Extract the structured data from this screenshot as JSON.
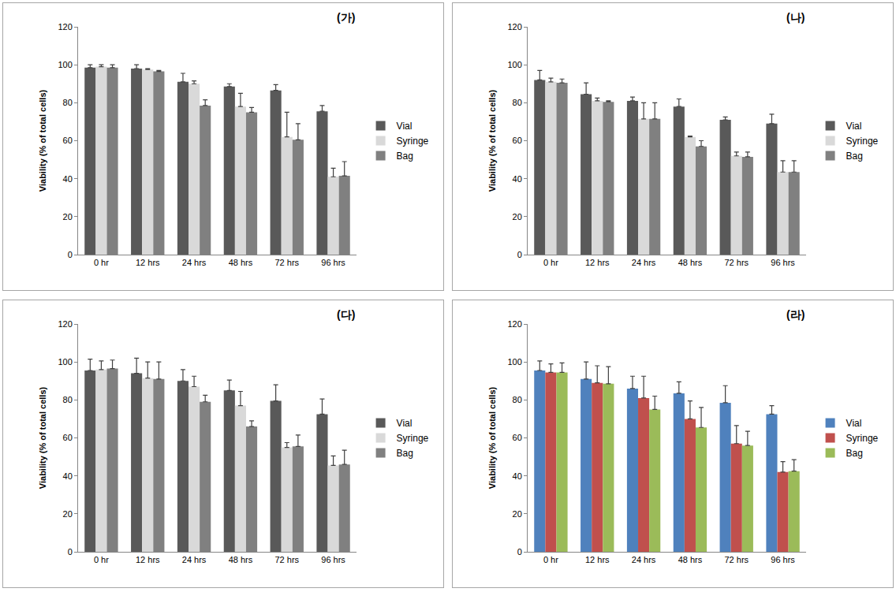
{
  "chart_data": [
    {
      "type": "bar",
      "title": "(가)",
      "y_label": "Viability (% of total cells)",
      "categories": [
        "0 hr",
        "12 hrs",
        "24 hrs",
        "48 hrs",
        "72 hrs",
        "96 hrs"
      ],
      "ylim": [
        0,
        120
      ],
      "yticks": [
        0,
        20,
        40,
        60,
        80,
        100,
        120
      ],
      "grid": false,
      "legend": "right",
      "series": [
        {
          "name": "Vial",
          "color": "#595959",
          "values": [
            98.5,
            98,
            91,
            88.5,
            86.5,
            75.5
          ],
          "error": [
            1.5,
            2,
            4.5,
            1.5,
            3,
            3
          ]
        },
        {
          "name": "Syringe",
          "color": "#d9d9d9",
          "values": [
            99,
            97.5,
            90,
            78,
            62,
            41
          ],
          "error": [
            1,
            0.5,
            1.5,
            7,
            13,
            4.5
          ]
        },
        {
          "name": "Bag",
          "color": "#808080",
          "values": [
            98.5,
            96.5,
            78.5,
            75,
            60.5,
            41.5
          ],
          "error": [
            1.5,
            0.5,
            3,
            2.5,
            8.5,
            7.5
          ]
        }
      ]
    },
    {
      "type": "bar",
      "title": "(나)",
      "y_label": "Viability (% of total cells)",
      "categories": [
        "0 hr",
        "12 hrs",
        "24 hrs",
        "48 hrs",
        "72 hrs",
        "96 hrs"
      ],
      "ylim": [
        0,
        120
      ],
      "yticks": [
        0,
        20,
        40,
        60,
        80,
        100,
        120
      ],
      "grid": false,
      "legend": "right",
      "series": [
        {
          "name": "Vial",
          "color": "#595959",
          "values": [
            92,
            84.5,
            81,
            78,
            71,
            69
          ],
          "error": [
            5,
            6,
            2,
            4,
            1.5,
            5
          ]
        },
        {
          "name": "Syringe",
          "color": "#d9d9d9",
          "values": [
            91,
            81,
            71.5,
            62,
            52,
            43.5
          ],
          "error": [
            2,
            1.5,
            8.5,
            0.5,
            2,
            6
          ]
        },
        {
          "name": "Bag",
          "color": "#808080",
          "values": [
            90.5,
            80.5,
            71.5,
            57,
            51.5,
            43.5
          ],
          "error": [
            2,
            0.5,
            8.5,
            3,
            2.5,
            6
          ]
        }
      ]
    },
    {
      "type": "bar",
      "title": "(다)",
      "y_label": "Viability (% of total cells)",
      "categories": [
        "0 hr",
        "12 hrs",
        "24 hrs",
        "48 hrs",
        "72 hrs",
        "96 hrs"
      ],
      "ylim": [
        0,
        120
      ],
      "yticks": [
        0,
        20,
        40,
        60,
        80,
        100,
        120
      ],
      "grid": false,
      "legend": "right",
      "series": [
        {
          "name": "Vial",
          "color": "#595959",
          "values": [
            95.5,
            94,
            90,
            85,
            79.5,
            72.5
          ],
          "error": [
            6,
            8,
            6,
            5.5,
            8.5,
            8
          ]
        },
        {
          "name": "Syringe",
          "color": "#d9d9d9",
          "values": [
            96,
            91.5,
            87,
            77,
            55,
            45.5
          ],
          "error": [
            4.5,
            8.5,
            5.5,
            7.5,
            2.5,
            5
          ]
        },
        {
          "name": "Bag",
          "color": "#808080",
          "values": [
            96.5,
            91,
            79,
            66,
            55.5,
            46
          ],
          "error": [
            4.5,
            9,
            3.5,
            3,
            6,
            7.5
          ]
        }
      ]
    },
    {
      "type": "bar",
      "title": "(라)",
      "y_label": "Viability (% of total cells)",
      "categories": [
        "0 hr",
        "12 hrs",
        "24 hrs",
        "48 hrs",
        "72 hrs",
        "96 hrs"
      ],
      "ylim": [
        0,
        120
      ],
      "yticks": [
        0,
        20,
        40,
        60,
        80,
        100,
        120
      ],
      "grid": false,
      "legend": "right",
      "series": [
        {
          "name": "Vial",
          "color": "#4f81bd",
          "values": [
            95.5,
            91,
            86,
            83.5,
            78.5,
            72.5
          ],
          "error": [
            5,
            9,
            6.5,
            6,
            9,
            4.5
          ]
        },
        {
          "name": "Syringe",
          "color": "#c0504d",
          "values": [
            94.5,
            89,
            81,
            70,
            57,
            42
          ],
          "error": [
            4.5,
            9,
            11.5,
            9.5,
            9.5,
            5.5
          ]
        },
        {
          "name": "Bag",
          "color": "#9bbb59",
          "values": [
            94.5,
            88.5,
            75,
            65.5,
            56,
            42.5
          ],
          "error": [
            5,
            9,
            7,
            10.5,
            7.5,
            6
          ]
        }
      ]
    }
  ]
}
